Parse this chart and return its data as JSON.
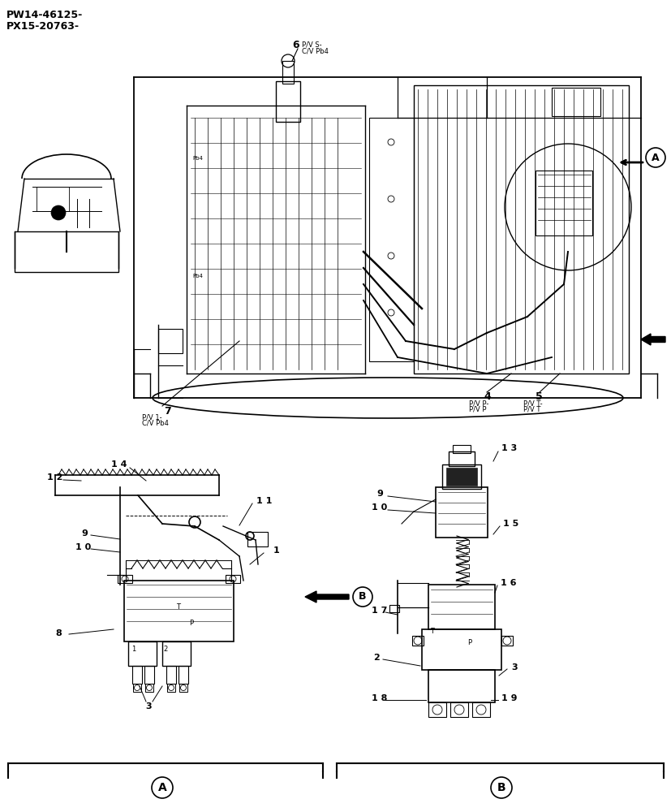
{
  "bg_color": "#ffffff",
  "line_color": "#000000",
  "fig_width": 8.28,
  "fig_height": 10.0,
  "dpi": 100,
  "header_text1": "PW14-46125-",
  "header_text2": "PX15-20763-",
  "label_6": "6",
  "label_6_sub1": "P/V S-",
  "label_6_sub2": "C/V Pb4",
  "label_7": "7",
  "label_7_sub1": "P/V 1-",
  "label_7_sub2": "C/V Pb4",
  "label_4": "4",
  "label_4_sub1": "P/V P-",
  "label_4_sub2": "P/V P",
  "label_5": "5",
  "label_5_sub1": "P/V T-",
  "label_5_sub2": "P/V T",
  "label_A_circle": "A",
  "label_B_circle": "B",
  "bottom_labels_left": [
    "1 2",
    "1 4",
    "9",
    "1 0",
    "8",
    "3",
    "1 1",
    "1"
  ],
  "bottom_labels_right": [
    "1 3",
    "9",
    "1 0",
    "1 5",
    "1 6",
    "1 7",
    "2",
    "3",
    "1 8",
    "1 9"
  ]
}
